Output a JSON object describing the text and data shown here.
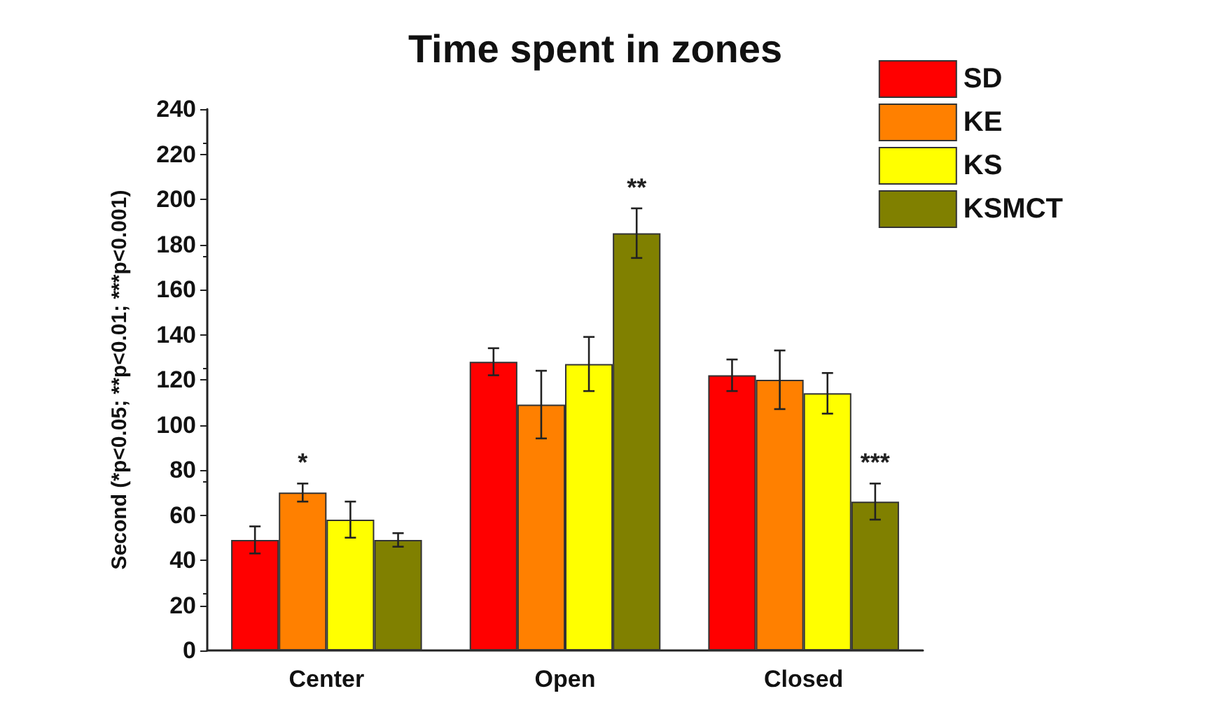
{
  "chart_data": {
    "type": "bar",
    "title": "Time spent in zones",
    "ylabel": "Second (*p<0.05; **p<0.01; ***p<0.001)",
    "categories": [
      "Center",
      "Open",
      "Closed"
    ],
    "series": [
      {
        "name": "SD",
        "color": "#ff0000",
        "values": [
          49,
          128,
          122
        ],
        "errors": [
          6,
          6,
          7
        ]
      },
      {
        "name": "KE",
        "color": "#ff8000",
        "values": [
          70,
          109,
          120
        ],
        "errors": [
          4,
          15,
          13
        ]
      },
      {
        "name": "KS",
        "color": "#ffff00",
        "values": [
          58,
          127,
          114
        ],
        "errors": [
          8,
          12,
          9
        ]
      },
      {
        "name": "KSMCT",
        "color": "#808000",
        "values": [
          49,
          185,
          66
        ],
        "errors": [
          3,
          11,
          8
        ]
      }
    ],
    "ylim": [
      0,
      240
    ],
    "yticks": [
      0,
      20,
      40,
      60,
      80,
      100,
      120,
      140,
      160,
      180,
      200,
      220,
      240
    ],
    "annotations": [
      "*",
      "**",
      "***"
    ],
    "legend": "top right",
    "grid": false
  }
}
